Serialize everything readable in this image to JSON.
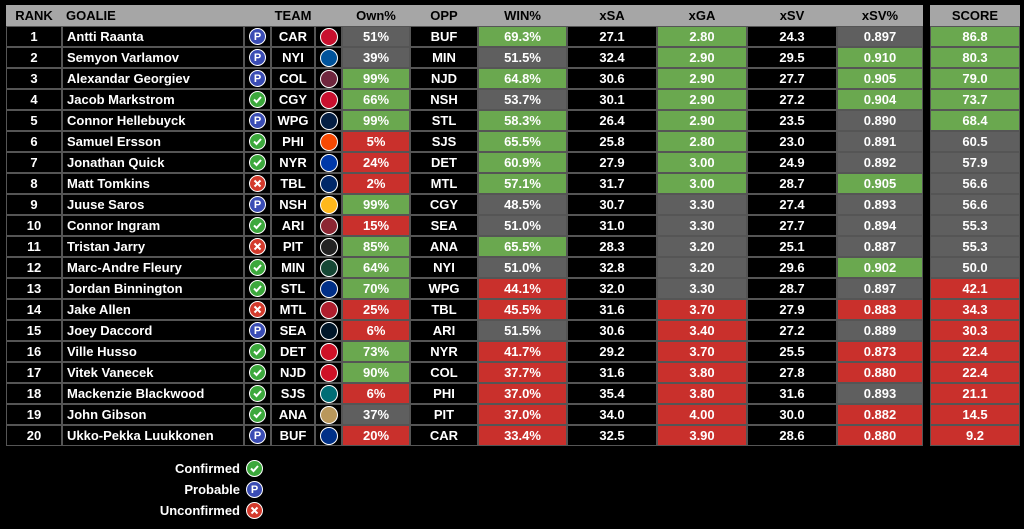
{
  "headers": {
    "rank": "RANK",
    "goalie": "GOALIE",
    "team": "TEAM",
    "own": "Own%",
    "opp": "OPP",
    "win": "WIN%",
    "xsa": "xSA",
    "xga": "xGA",
    "xsv": "xSV",
    "xsvp": "xSV%",
    "score": "SCORE"
  },
  "status_legend": [
    {
      "label": "Confirmed",
      "code": "C",
      "icon": "checkmark-icon"
    },
    {
      "label": "Probable",
      "code": "P",
      "icon": "P"
    },
    {
      "label": "Unconfirmed",
      "code": "U",
      "icon": "x-icon"
    }
  ],
  "colors": {
    "header_bg": "#a6a6a6",
    "green": "#6aa84f",
    "gray": "#5f5f5f",
    "red": "#c9302c",
    "confirmed": "#3ca83c",
    "probable": "#3a4cb4",
    "unconfirmed": "#d33a2c"
  },
  "team_colors": {
    "CAR": "#c8102e",
    "NYI": "#00539b",
    "COL": "#6f263d",
    "CGY": "#c8102e",
    "WPG": "#041e42",
    "PHI": "#f74902",
    "NYR": "#0038a8",
    "TBL": "#002868",
    "NSH": "#ffb81c",
    "ARI": "#8c2633",
    "PIT": "#222222",
    "MIN": "#154734",
    "STL": "#002f87",
    "MTL": "#af1e2d",
    "SEA": "#001628",
    "DET": "#ce1126",
    "NJD": "#ce1126",
    "SJS": "#006d75",
    "ANA": "#b9975b",
    "BUF": "#003087"
  },
  "rows": [
    {
      "rank": "1",
      "goalie": "Antti Raanta",
      "status": "P",
      "team": "CAR",
      "own": "51%",
      "opp": "BUF",
      "win": "69.3%",
      "xsa": "27.1",
      "xga": "2.80",
      "xsv": "24.3",
      "xsvp": "0.897",
      "score": "86.8",
      "own_c": "gray",
      "win_c": "green",
      "xga_c": "green",
      "xsvp_c": "gray",
      "score_c": "green"
    },
    {
      "rank": "2",
      "goalie": "Semyon Varlamov",
      "status": "P",
      "team": "NYI",
      "own": "39%",
      "opp": "MIN",
      "win": "51.5%",
      "xsa": "32.4",
      "xga": "2.90",
      "xsv": "29.5",
      "xsvp": "0.910",
      "score": "80.3",
      "own_c": "gray",
      "win_c": "gray",
      "xga_c": "green",
      "xsvp_c": "green",
      "score_c": "green"
    },
    {
      "rank": "3",
      "goalie": "Alexandar Georgiev",
      "status": "P",
      "team": "COL",
      "own": "99%",
      "opp": "NJD",
      "win": "64.8%",
      "xsa": "30.6",
      "xga": "2.90",
      "xsv": "27.7",
      "xsvp": "0.905",
      "score": "79.0",
      "own_c": "green",
      "win_c": "green",
      "xga_c": "green",
      "xsvp_c": "green",
      "score_c": "green"
    },
    {
      "rank": "4",
      "goalie": "Jacob Markstrom",
      "status": "C",
      "team": "CGY",
      "own": "66%",
      "opp": "NSH",
      "win": "53.7%",
      "xsa": "30.1",
      "xga": "2.90",
      "xsv": "27.2",
      "xsvp": "0.904",
      "score": "73.7",
      "own_c": "green",
      "win_c": "gray",
      "xga_c": "green",
      "xsvp_c": "green",
      "score_c": "green"
    },
    {
      "rank": "5",
      "goalie": "Connor Hellebuyck",
      "status": "P",
      "team": "WPG",
      "own": "99%",
      "opp": "STL",
      "win": "58.3%",
      "xsa": "26.4",
      "xga": "2.90",
      "xsv": "23.5",
      "xsvp": "0.890",
      "score": "68.4",
      "own_c": "green",
      "win_c": "green",
      "xga_c": "green",
      "xsvp_c": "gray",
      "score_c": "green"
    },
    {
      "rank": "6",
      "goalie": "Samuel Ersson",
      "status": "C",
      "team": "PHI",
      "own": "5%",
      "opp": "SJS",
      "win": "65.5%",
      "xsa": "25.8",
      "xga": "2.80",
      "xsv": "23.0",
      "xsvp": "0.891",
      "score": "60.5",
      "own_c": "red",
      "win_c": "green",
      "xga_c": "green",
      "xsvp_c": "gray",
      "score_c": "gray"
    },
    {
      "rank": "7",
      "goalie": "Jonathan Quick",
      "status": "C",
      "team": "NYR",
      "own": "24%",
      "opp": "DET",
      "win": "60.9%",
      "xsa": "27.9",
      "xga": "3.00",
      "xsv": "24.9",
      "xsvp": "0.892",
      "score": "57.9",
      "own_c": "red",
      "win_c": "green",
      "xga_c": "green",
      "xsvp_c": "gray",
      "score_c": "gray"
    },
    {
      "rank": "8",
      "goalie": "Matt Tomkins",
      "status": "U",
      "team": "TBL",
      "own": "2%",
      "opp": "MTL",
      "win": "57.1%",
      "xsa": "31.7",
      "xga": "3.00",
      "xsv": "28.7",
      "xsvp": "0.905",
      "score": "56.6",
      "own_c": "red",
      "win_c": "green",
      "xga_c": "green",
      "xsvp_c": "green",
      "score_c": "gray"
    },
    {
      "rank": "9",
      "goalie": "Juuse Saros",
      "status": "P",
      "team": "NSH",
      "own": "99%",
      "opp": "CGY",
      "win": "48.5%",
      "xsa": "30.7",
      "xga": "3.30",
      "xsv": "27.4",
      "xsvp": "0.893",
      "score": "56.6",
      "own_c": "green",
      "win_c": "gray",
      "xga_c": "gray",
      "xsvp_c": "gray",
      "score_c": "gray"
    },
    {
      "rank": "10",
      "goalie": "Connor Ingram",
      "status": "C",
      "team": "ARI",
      "own": "15%",
      "opp": "SEA",
      "win": "51.0%",
      "xsa": "31.0",
      "xga": "3.30",
      "xsv": "27.7",
      "xsvp": "0.894",
      "score": "55.3",
      "own_c": "red",
      "win_c": "gray",
      "xga_c": "gray",
      "xsvp_c": "gray",
      "score_c": "gray"
    },
    {
      "rank": "11",
      "goalie": "Tristan Jarry",
      "status": "U",
      "team": "PIT",
      "own": "85%",
      "opp": "ANA",
      "win": "65.5%",
      "xsa": "28.3",
      "xga": "3.20",
      "xsv": "25.1",
      "xsvp": "0.887",
      "score": "55.3",
      "own_c": "green",
      "win_c": "green",
      "xga_c": "gray",
      "xsvp_c": "gray",
      "score_c": "gray"
    },
    {
      "rank": "12",
      "goalie": "Marc-Andre Fleury",
      "status": "C",
      "team": "MIN",
      "own": "64%",
      "opp": "NYI",
      "win": "51.0%",
      "xsa": "32.8",
      "xga": "3.20",
      "xsv": "29.6",
      "xsvp": "0.902",
      "score": "50.0",
      "own_c": "green",
      "win_c": "gray",
      "xga_c": "gray",
      "xsvp_c": "green",
      "score_c": "gray"
    },
    {
      "rank": "13",
      "goalie": "Jordan Binnington",
      "status": "C",
      "team": "STL",
      "own": "70%",
      "opp": "WPG",
      "win": "44.1%",
      "xsa": "32.0",
      "xga": "3.30",
      "xsv": "28.7",
      "xsvp": "0.897",
      "score": "42.1",
      "own_c": "green",
      "win_c": "red",
      "xga_c": "gray",
      "xsvp_c": "gray",
      "score_c": "red"
    },
    {
      "rank": "14",
      "goalie": "Jake Allen",
      "status": "U",
      "team": "MTL",
      "own": "25%",
      "opp": "TBL",
      "win": "45.5%",
      "xsa": "31.6",
      "xga": "3.70",
      "xsv": "27.9",
      "xsvp": "0.883",
      "score": "34.3",
      "own_c": "red",
      "win_c": "red",
      "xga_c": "red",
      "xsvp_c": "red",
      "score_c": "red"
    },
    {
      "rank": "15",
      "goalie": "Joey Daccord",
      "status": "P",
      "team": "SEA",
      "own": "6%",
      "opp": "ARI",
      "win": "51.5%",
      "xsa": "30.6",
      "xga": "3.40",
      "xsv": "27.2",
      "xsvp": "0.889",
      "score": "30.3",
      "own_c": "red",
      "win_c": "gray",
      "xga_c": "red",
      "xsvp_c": "gray",
      "score_c": "red"
    },
    {
      "rank": "16",
      "goalie": "Ville Husso",
      "status": "C",
      "team": "DET",
      "own": "73%",
      "opp": "NYR",
      "win": "41.7%",
      "xsa": "29.2",
      "xga": "3.70",
      "xsv": "25.5",
      "xsvp": "0.873",
      "score": "22.4",
      "own_c": "green",
      "win_c": "red",
      "xga_c": "red",
      "xsvp_c": "red",
      "score_c": "red"
    },
    {
      "rank": "17",
      "goalie": "Vitek Vanecek",
      "status": "C",
      "team": "NJD",
      "own": "90%",
      "opp": "COL",
      "win": "37.7%",
      "xsa": "31.6",
      "xga": "3.80",
      "xsv": "27.8",
      "xsvp": "0.880",
      "score": "22.4",
      "own_c": "green",
      "win_c": "red",
      "xga_c": "red",
      "xsvp_c": "red",
      "score_c": "red"
    },
    {
      "rank": "18",
      "goalie": "Mackenzie Blackwood",
      "status": "C",
      "team": "SJS",
      "own": "6%",
      "opp": "PHI",
      "win": "37.0%",
      "xsa": "35.4",
      "xga": "3.80",
      "xsv": "31.6",
      "xsvp": "0.893",
      "score": "21.1",
      "own_c": "red",
      "win_c": "red",
      "xga_c": "red",
      "xsvp_c": "gray",
      "score_c": "red"
    },
    {
      "rank": "19",
      "goalie": "John Gibson",
      "status": "C",
      "team": "ANA",
      "own": "37%",
      "opp": "PIT",
      "win": "37.0%",
      "xsa": "34.0",
      "xga": "4.00",
      "xsv": "30.0",
      "xsvp": "0.882",
      "score": "14.5",
      "own_c": "gray",
      "win_c": "red",
      "xga_c": "red",
      "xsvp_c": "red",
      "score_c": "red"
    },
    {
      "rank": "20",
      "goalie": "Ukko-Pekka Luukkonen",
      "status": "P",
      "team": "BUF",
      "own": "20%",
      "opp": "CAR",
      "win": "33.4%",
      "xsa": "32.5",
      "xga": "3.90",
      "xsv": "28.6",
      "xsvp": "0.880",
      "score": "9.2",
      "own_c": "red",
      "win_c": "red",
      "xga_c": "red",
      "xsvp_c": "red",
      "score_c": "red"
    }
  ]
}
